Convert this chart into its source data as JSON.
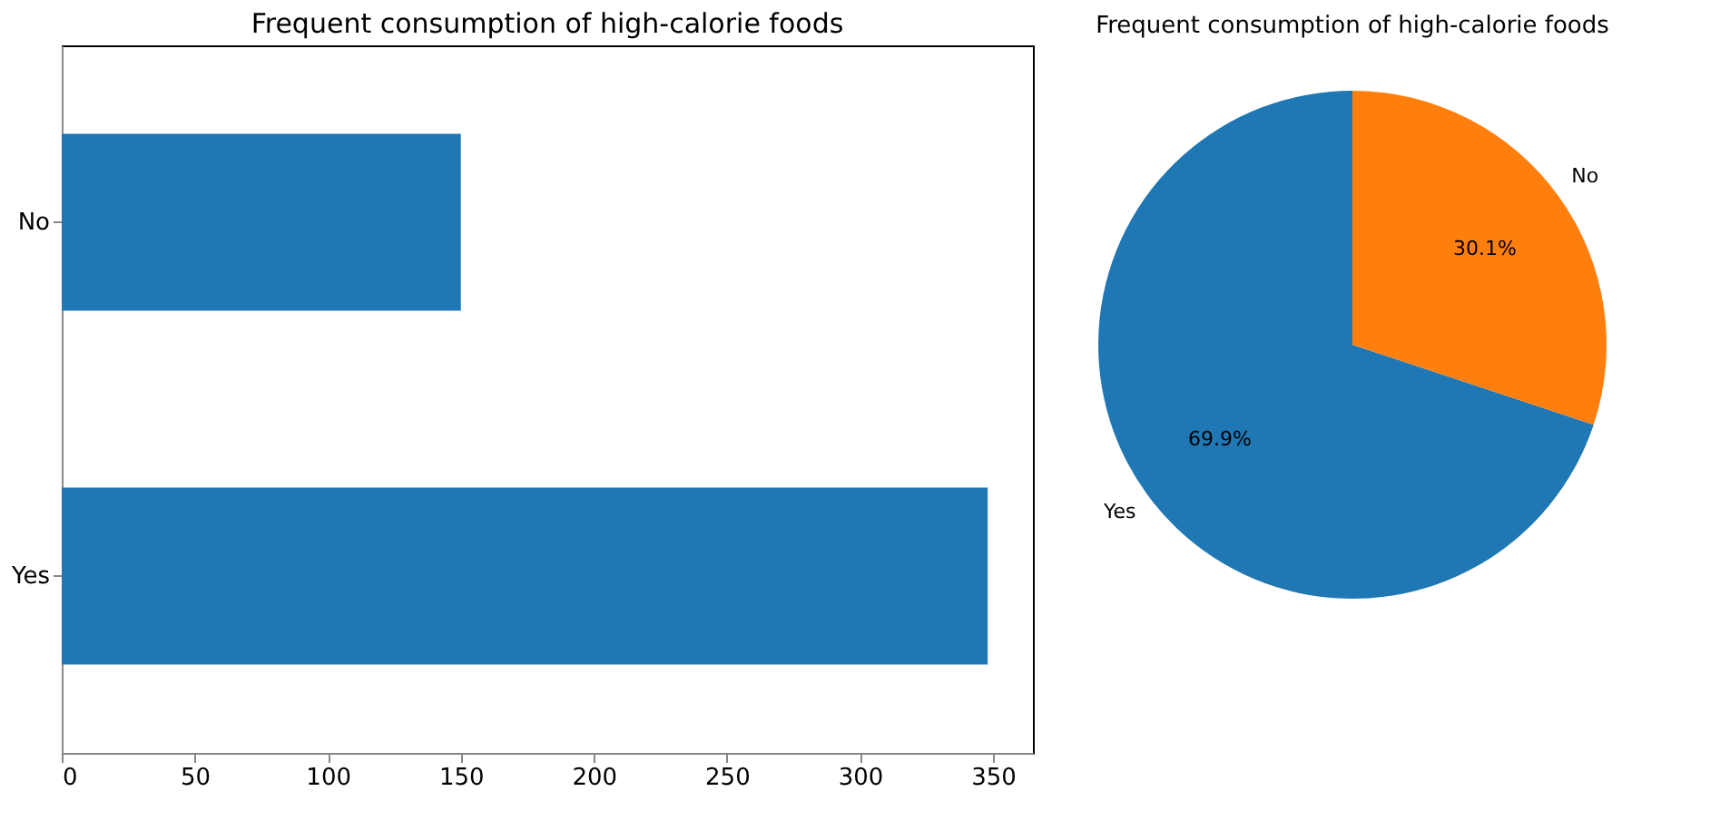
{
  "chart_data": [
    {
      "type": "bar",
      "title": "Frequent consumption of high-calorie foods",
      "orientation": "horizontal",
      "categories": [
        "No",
        "Yes"
      ],
      "values": [
        150,
        348
      ],
      "color": "#1f77b4",
      "xlim": [
        0,
        365
      ],
      "xticks": [
        0,
        50,
        100,
        150,
        200,
        250,
        300,
        350
      ],
      "grid": false
    },
    {
      "type": "pie",
      "title": "Frequent consumption of high-calorie foods",
      "categories": [
        "Yes",
        "No"
      ],
      "values": [
        69.9,
        30.1
      ],
      "colors": [
        "#1f77b4",
        "#ff7f0e"
      ],
      "value_labels": [
        "69.9%",
        "30.1%"
      ]
    }
  ]
}
